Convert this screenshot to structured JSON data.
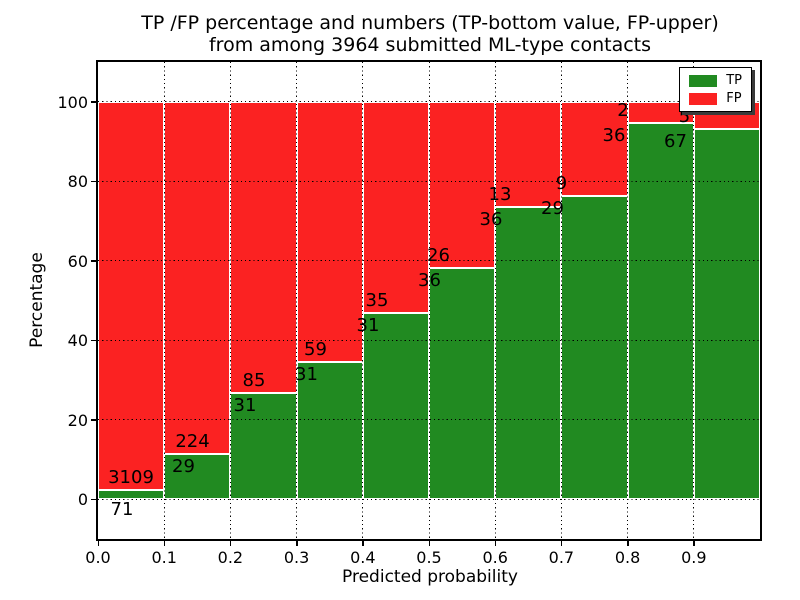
{
  "figure": {
    "title_line1": "TP /FP percentage and numbers (TP-bottom value, FP-upper)",
    "title_line2": "from among 3964 submitted ML-type contacts"
  },
  "chart_data": {
    "type": "bar",
    "variant": "stacked-percentage-histogram",
    "title": "TP /FP percentage and numbers (TP-bottom value, FP-upper)\nfrom among 3964 submitted ML-type contacts",
    "xlabel": "Predicted probability",
    "ylabel": "Percentage",
    "total_contacts_in_title": 3964,
    "xlim": [
      0.0,
      1.0
    ],
    "ylim": [
      -10,
      110
    ],
    "bin_width": 0.1,
    "bin_starts": [
      0.0,
      0.1,
      0.2,
      0.3,
      0.4,
      0.5,
      0.6,
      0.7,
      0.8,
      0.9
    ],
    "x_tick_labels": [
      "0.0",
      "0.1",
      "0.2",
      "0.3",
      "0.4",
      "0.5",
      "0.6",
      "0.7",
      "0.8",
      "0.9"
    ],
    "y_tick_values": [
      0,
      20,
      40,
      60,
      80,
      100
    ],
    "y_tick_labels": [
      "0",
      "20",
      "40",
      "60",
      "80",
      "100"
    ],
    "grid": "dotted",
    "legend_position": "upper-right",
    "bar_edge_color": "#ffffff",
    "series": [
      {
        "name": "TP",
        "color": "#218a21",
        "counts": [
          71,
          29,
          31,
          31,
          31,
          36,
          36,
          29,
          36,
          67
        ],
        "percent": [
          2.23,
          11.46,
          26.72,
          34.44,
          46.97,
          58.06,
          73.47,
          76.32,
          94.74,
          93.06
        ]
      },
      {
        "name": "FP",
        "color": "#fb2222",
        "counts": [
          3109,
          224,
          85,
          59,
          35,
          26,
          13,
          9,
          2,
          5
        ],
        "percent": [
          97.77,
          88.54,
          73.28,
          65.56,
          53.03,
          41.94,
          26.53,
          23.68,
          5.26,
          6.94
        ]
      }
    ]
  }
}
